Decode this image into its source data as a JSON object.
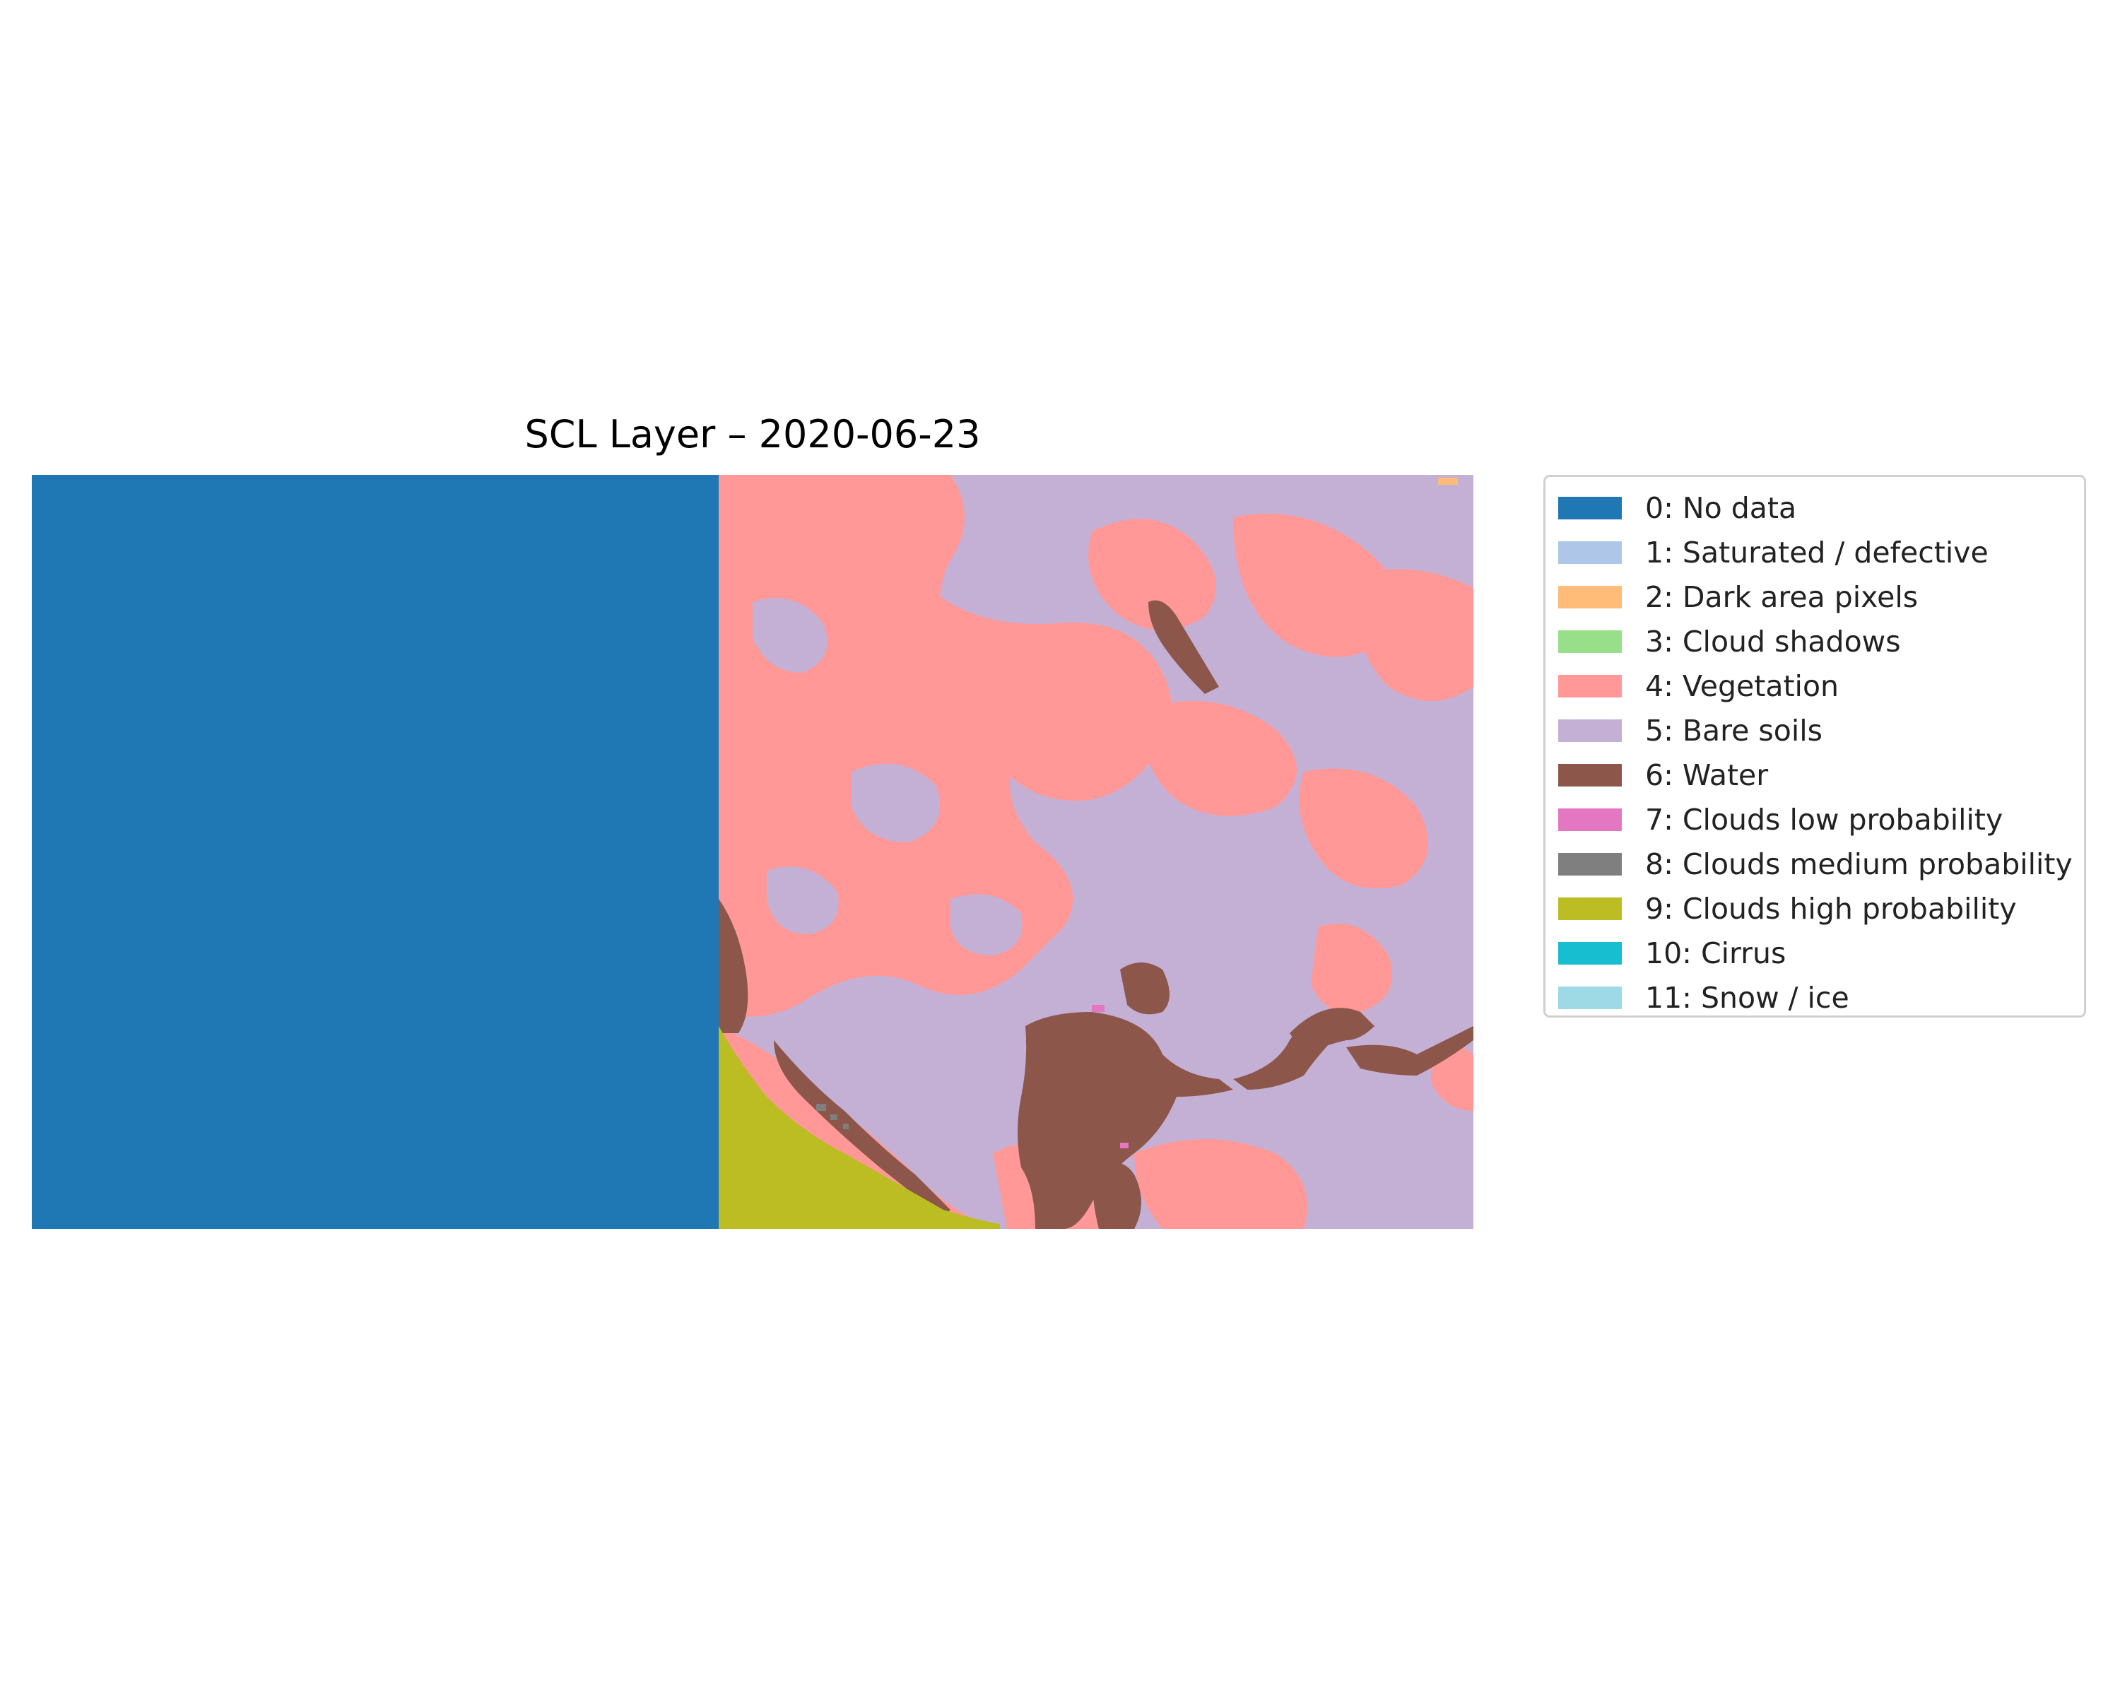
{
  "title": "SCL Layer – 2020-06-23",
  "legend": {
    "items": [
      {
        "value": 0,
        "label": "0: No data",
        "color": "#1f77b4"
      },
      {
        "value": 1,
        "label": "1: Saturated / defective",
        "color": "#aec7e8"
      },
      {
        "value": 2,
        "label": "2: Dark area pixels",
        "color": "#ffbb78"
      },
      {
        "value": 3,
        "label": "3: Cloud shadows",
        "color": "#98df8a"
      },
      {
        "value": 4,
        "label": "4: Vegetation",
        "color": "#ff9896"
      },
      {
        "value": 5,
        "label": "5: Bare soils",
        "color": "#c5b0d5"
      },
      {
        "value": 6,
        "label": "6: Water",
        "color": "#8c564b"
      },
      {
        "value": 7,
        "label": "7: Clouds low probability",
        "color": "#e377c2"
      },
      {
        "value": 8,
        "label": "8: Clouds medium probability",
        "color": "#7f7f7f"
      },
      {
        "value": 9,
        "label": "9: Clouds high probability",
        "color": "#bcbd22"
      },
      {
        "value": 10,
        "label": "10: Cirrus",
        "color": "#17becf"
      },
      {
        "value": 11,
        "label": "11: Snow / ice",
        "color": "#9edae5"
      }
    ]
  }
}
